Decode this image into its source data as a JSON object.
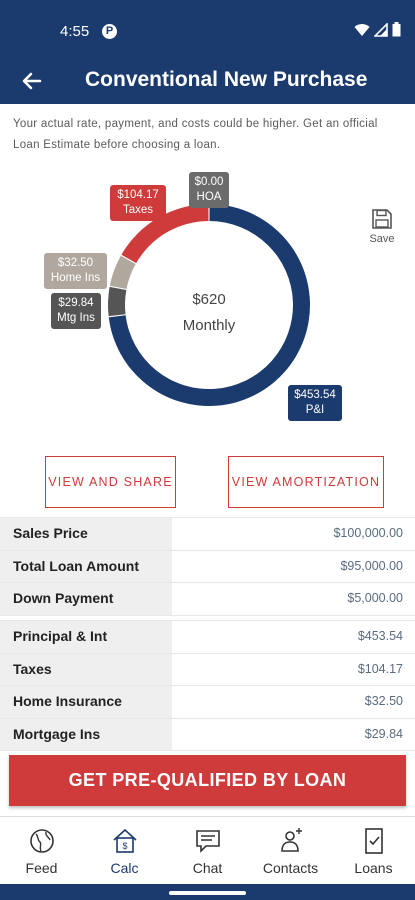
{
  "status": {
    "time": "4:55",
    "badge": "P"
  },
  "header": {
    "title": "Conventional New Purchase"
  },
  "disclaimer": "Your actual rate, payment, and costs could be higher. Get an official Loan Estimate before choosing a loan.",
  "save_label": "Save",
  "chart": {
    "center_amount": "$620",
    "center_label": "Monthly",
    "tags": {
      "taxes": {
        "amount": "$104.17",
        "label": "Taxes"
      },
      "hoa": {
        "amount": "$0.00",
        "label": "HOA"
      },
      "home_ins": {
        "amount": "$32.50",
        "label": "Home Ins"
      },
      "mtg_ins": {
        "amount": "$29.84",
        "label": "Mtg Ins"
      },
      "pi": {
        "amount": "$453.54",
        "label": "P&I"
      }
    }
  },
  "chart_data": {
    "type": "pie",
    "categories": [
      "P&I",
      "Taxes",
      "HOA",
      "Home Ins",
      "Mtg Ins"
    ],
    "values": [
      453.54,
      104.17,
      0.0,
      32.5,
      29.84
    ],
    "colors": [
      "#1b3a6e",
      "#cf3a3a",
      "#666666",
      "#b0a89f",
      "#555555"
    ]
  },
  "buttons": {
    "view_share": "VIEW AND SHARE",
    "view_amortization": "VIEW AMORTIZATION"
  },
  "table1": [
    {
      "label": "Sales Price",
      "value": "$100,000.00"
    },
    {
      "label": "Total Loan Amount",
      "value": "$95,000.00"
    },
    {
      "label": "Down Payment",
      "value": "$5,000.00"
    }
  ],
  "table2": [
    {
      "label": "Principal & Int",
      "value": "$453.54"
    },
    {
      "label": "Taxes",
      "value": "$104.17"
    },
    {
      "label": "Home Insurance",
      "value": "$32.50"
    },
    {
      "label": "Mortgage Ins",
      "value": "$29.84"
    }
  ],
  "cta": "GET PRE-QUALIFIED BY LOAN",
  "tabs": [
    {
      "label": "Feed",
      "icon": "globe-icon"
    },
    {
      "label": "Calc",
      "icon": "calculator-house-icon"
    },
    {
      "label": "Chat",
      "icon": "chat-icon"
    },
    {
      "label": "Contacts",
      "icon": "contacts-icon"
    },
    {
      "label": "Loans",
      "icon": "loans-doc-icon"
    }
  ]
}
